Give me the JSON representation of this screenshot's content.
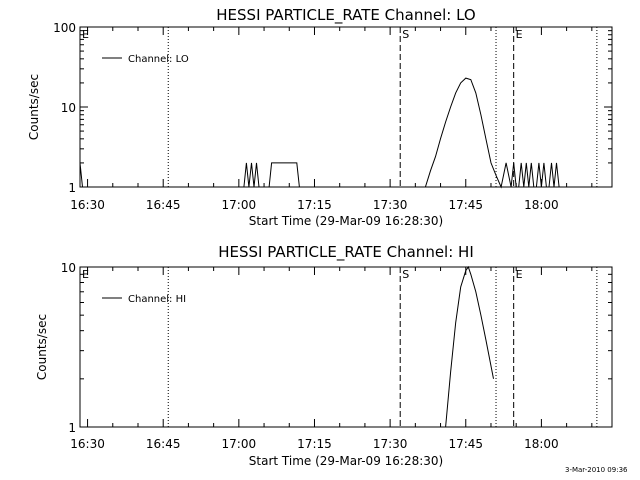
{
  "chart_data": [
    {
      "type": "line",
      "title": "HESSI PARTICLE_RATE Channel: LO",
      "xlabel": "Start Time (29-Mar-09 16:28:30)",
      "ylabel": "Counts/sec",
      "y_scale": "log",
      "xlim": [
        "16:28:30",
        "18:14:00"
      ],
      "ylim": [
        1,
        100
      ],
      "x_ticks": [
        "16:30",
        "16:45",
        "17:00",
        "17:15",
        "17:30",
        "17:45",
        "18:00"
      ],
      "y_ticks": [
        "1",
        "10",
        "100"
      ],
      "legend": {
        "position": "top-left",
        "entries": [
          "Channel: LO"
        ]
      },
      "markers": [
        {
          "label": "E",
          "time": "16:28:30",
          "style": "none"
        },
        {
          "label": "",
          "time": "16:46:00",
          "style": "dotted"
        },
        {
          "label": "S",
          "time": "17:32:00",
          "style": "dashed"
        },
        {
          "label": "",
          "time": "17:51:00",
          "style": "dotted"
        },
        {
          "label": "E",
          "time": "17:54:30",
          "style": "dashed"
        },
        {
          "label": "",
          "time": "18:11:00",
          "style": "dotted"
        }
      ],
      "series": [
        {
          "name": "Channel: LO",
          "x": [
            "16:28:30",
            "16:29:00",
            "16:29:30",
            "17:01:00",
            "17:01:30",
            "17:02:00",
            "17:02:30",
            "17:03:00",
            "17:03:30",
            "17:04:00",
            "17:06:00",
            "17:06:30",
            "17:11:30",
            "17:12:00",
            "17:12:30",
            "17:37:00",
            "17:38:00",
            "17:39:00",
            "17:40:00",
            "17:41:00",
            "17:42:00",
            "17:43:00",
            "17:44:00",
            "17:45:00",
            "17:46:00",
            "17:47:00",
            "17:48:00",
            "17:49:00",
            "17:50:00",
            "17:51:00",
            "17:52:00",
            "17:53:00",
            "17:54:00",
            "17:54:30",
            "17:55:00",
            "17:55:30",
            "17:56:00",
            "17:56:30",
            "17:57:00",
            "17:57:30",
            "17:58:00",
            "17:58:30",
            "17:59:00",
            "17:59:30",
            "18:00:00",
            "18:00:30",
            "18:01:00",
            "18:01:30",
            "18:02:00",
            "18:02:30",
            "18:03:00",
            "18:03:30",
            "18:04:00"
          ],
          "values": [
            2,
            1,
            1,
            1,
            2,
            1,
            2,
            1,
            2,
            1,
            1,
            2,
            2,
            1,
            1,
            1,
            1.6,
            2.4,
            4,
            6.5,
            10,
            15,
            20,
            23,
            22,
            15,
            8,
            4,
            2,
            1.4,
            1,
            2,
            1,
            2,
            1,
            1,
            2,
            1,
            2,
            1,
            2,
            1,
            1,
            2,
            1,
            2,
            1,
            1,
            2,
            1,
            2,
            1,
            1
          ]
        }
      ]
    },
    {
      "type": "line",
      "title": "HESSI PARTICLE_RATE Channel: HI",
      "xlabel": "Start Time (29-Mar-09 16:28:30)",
      "ylabel": "Counts/sec",
      "y_scale": "log",
      "xlim": [
        "16:28:30",
        "18:14:00"
      ],
      "ylim": [
        1,
        10
      ],
      "x_ticks": [
        "16:30",
        "16:45",
        "17:00",
        "17:15",
        "17:30",
        "17:45",
        "18:00"
      ],
      "y_ticks": [
        "1",
        "10"
      ],
      "legend": {
        "position": "top-left",
        "entries": [
          "Channel: HI"
        ]
      },
      "markers": [
        {
          "label": "E",
          "time": "16:28:30",
          "style": "none"
        },
        {
          "label": "",
          "time": "16:46:00",
          "style": "dotted"
        },
        {
          "label": "S",
          "time": "17:32:00",
          "style": "dashed"
        },
        {
          "label": "",
          "time": "17:51:00",
          "style": "dotted"
        },
        {
          "label": "E",
          "time": "17:54:30",
          "style": "dashed"
        },
        {
          "label": "",
          "time": "18:11:00",
          "style": "dotted"
        }
      ],
      "series": [
        {
          "name": "Channel: HI",
          "x": [
            "17:41:00",
            "17:42:00",
            "17:43:00",
            "17:44:00",
            "17:45:00",
            "17:45:30",
            "17:46:00",
            "17:47:00",
            "17:48:00",
            "17:49:00",
            "17:50:30"
          ],
          "values": [
            1,
            2.2,
            4.5,
            7.5,
            9.5,
            10,
            9,
            7,
            5,
            3.5,
            2
          ]
        }
      ]
    }
  ],
  "footer": {
    "timestamp": "3-Mar-2010 09:36"
  }
}
